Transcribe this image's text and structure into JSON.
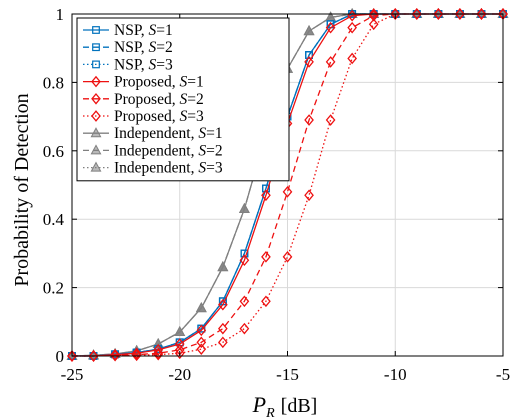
{
  "chart_data": {
    "type": "line",
    "xlabel_main": "P",
    "xlabel_sub": "R",
    "xlabel_unit": "[dB]",
    "ylabel": "Probability of Detection",
    "xlim": [
      -25,
      -5
    ],
    "ylim": [
      0,
      1
    ],
    "xticks": [
      "-25",
      "-20",
      "-15",
      "-10",
      "-5"
    ],
    "yticks": [
      "0",
      "0.2",
      "0.4",
      "0.6",
      "0.8",
      "1"
    ],
    "grid": true,
    "legend_position": "top-left",
    "x": [
      -25,
      -24,
      -23,
      -22,
      -21,
      -20,
      -19,
      -18,
      -17,
      -16,
      -15,
      -14,
      -13,
      -12,
      -11,
      -10,
      -9,
      -8,
      -7,
      -6,
      -5
    ],
    "series": [
      {
        "name_prefix": "NSP, ",
        "name_var": "S",
        "name_suffix": "=1",
        "color": "#0072BD",
        "dash": "",
        "marker": "square",
        "values": [
          0.0,
          0.0,
          0.005,
          0.01,
          0.02,
          0.04,
          0.08,
          0.16,
          0.3,
          0.49,
          0.7,
          0.88,
          0.97,
          1.0,
          1.0,
          1.0,
          1.0,
          1.0,
          1.0,
          1.0,
          1.0
        ]
      },
      {
        "name_prefix": "NSP, ",
        "name_var": "S",
        "name_suffix": "=2",
        "color": "#0072BD",
        "dash": "6,4",
        "marker": "square",
        "values": [
          0.0,
          0.0,
          0.005,
          0.01,
          0.02,
          0.04,
          0.08,
          0.16,
          0.3,
          0.49,
          0.7,
          0.88,
          0.97,
          1.0,
          1.0,
          1.0,
          1.0,
          1.0,
          1.0,
          1.0,
          1.0
        ]
      },
      {
        "name_prefix": "NSP, ",
        "name_var": "S",
        "name_suffix": "=3",
        "color": "#0072BD",
        "dash": "1.5,2.5",
        "marker": "square",
        "values": [
          0.0,
          0.0,
          0.005,
          0.01,
          0.02,
          0.04,
          0.08,
          0.16,
          0.3,
          0.49,
          0.7,
          0.88,
          0.97,
          1.0,
          1.0,
          1.0,
          1.0,
          1.0,
          1.0,
          1.0,
          1.0
        ]
      },
      {
        "name_prefix": "Proposed, ",
        "name_var": "S",
        "name_suffix": "=1",
        "color": "#EE1111",
        "dash": "",
        "marker": "diamond",
        "values": [
          0.0,
          0.0,
          0.004,
          0.008,
          0.018,
          0.035,
          0.075,
          0.15,
          0.28,
          0.47,
          0.68,
          0.86,
          0.96,
          0.995,
          1.0,
          1.0,
          1.0,
          1.0,
          1.0,
          1.0,
          1.0
        ]
      },
      {
        "name_prefix": "Proposed, ",
        "name_var": "S",
        "name_suffix": "=2",
        "color": "#EE1111",
        "dash": "6,4",
        "marker": "diamond",
        "values": [
          0.0,
          0.0,
          0.002,
          0.004,
          0.008,
          0.018,
          0.04,
          0.08,
          0.16,
          0.29,
          0.48,
          0.69,
          0.86,
          0.96,
          0.995,
          1.0,
          1.0,
          1.0,
          1.0,
          1.0,
          1.0
        ]
      },
      {
        "name_prefix": "Proposed, ",
        "name_var": "S",
        "name_suffix": "=3",
        "color": "#EE1111",
        "dash": "1.5,2.5",
        "marker": "diamond",
        "values": [
          0.0,
          0.0,
          0.001,
          0.002,
          0.004,
          0.008,
          0.02,
          0.04,
          0.08,
          0.16,
          0.29,
          0.47,
          0.69,
          0.87,
          0.97,
          1.0,
          1.0,
          1.0,
          1.0,
          1.0,
          1.0
        ]
      },
      {
        "name_prefix": "Independent, ",
        "name_var": "S",
        "name_suffix": "=1",
        "color": "#808080",
        "dash": "",
        "marker": "triangle",
        "values": [
          0.0,
          0.002,
          0.006,
          0.015,
          0.035,
          0.07,
          0.14,
          0.26,
          0.43,
          0.65,
          0.84,
          0.95,
          0.99,
          1.0,
          1.0,
          1.0,
          1.0,
          1.0,
          1.0,
          1.0,
          1.0
        ]
      },
      {
        "name_prefix": "Independent, ",
        "name_var": "S",
        "name_suffix": "=2",
        "color": "#808080",
        "dash": "6,4",
        "marker": "triangle",
        "values": [
          0.0,
          0.002,
          0.006,
          0.015,
          0.035,
          0.07,
          0.14,
          0.26,
          0.43,
          0.65,
          0.84,
          0.95,
          0.99,
          1.0,
          1.0,
          1.0,
          1.0,
          1.0,
          1.0,
          1.0,
          1.0
        ]
      },
      {
        "name_prefix": "Independent, ",
        "name_var": "S",
        "name_suffix": "=3",
        "color": "#808080",
        "dash": "1.5,2.5",
        "marker": "triangle",
        "values": [
          0.0,
          0.002,
          0.006,
          0.015,
          0.035,
          0.07,
          0.14,
          0.26,
          0.43,
          0.65,
          0.84,
          0.95,
          0.99,
          1.0,
          1.0,
          1.0,
          1.0,
          1.0,
          1.0,
          1.0,
          1.0
        ]
      }
    ]
  }
}
